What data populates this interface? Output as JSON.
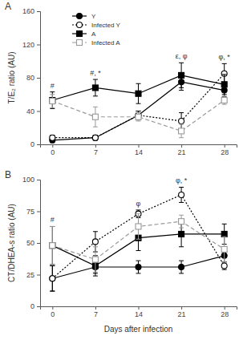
{
  "chart_data": [
    {
      "type": "line",
      "title": "A",
      "y_label": "T/E₂ ratio (AU)",
      "x": [
        0,
        7,
        14,
        21,
        28
      ],
      "xlim": [
        -2,
        30
      ],
      "xticks": [
        0,
        7,
        14,
        21,
        28
      ],
      "ylim": [
        0,
        160
      ],
      "yticks": [
        0,
        40,
        80,
        120,
        160
      ],
      "legend": "upper left",
      "series": [
        {
          "name": "Y",
          "color": "#000000",
          "marker": "circle",
          "line_style": "solid",
          "values": [
            5,
            8,
            35,
            75,
            65
          ],
          "errors": [
            3,
            3,
            5,
            10,
            8
          ]
        },
        {
          "name": "Infected Y",
          "color": "#000000",
          "marker": "circle-open",
          "line_style": "dotted",
          "values": [
            8,
            8,
            35,
            28,
            85
          ],
          "errors": [
            3,
            3,
            5,
            10,
            12
          ]
        },
        {
          "name": "A",
          "color": "#000000",
          "marker": "square",
          "line_style": "solid",
          "values": [
            53,
            68,
            61,
            83,
            72
          ],
          "errors": [
            10,
            10,
            12,
            15,
            12
          ]
        },
        {
          "name": "Infected A",
          "color": "#999999",
          "marker": "square-open",
          "line_style": "dashed",
          "values": [
            52,
            33,
            33,
            16,
            53
          ],
          "errors": [
            8,
            12,
            5,
            8,
            5
          ]
        }
      ],
      "annotations": [
        {
          "x": 0,
          "text": "#"
        },
        {
          "x": 7,
          "text": "#, *"
        },
        {
          "x": 21,
          "text": "ε, φ"
        },
        {
          "x": 28,
          "text": "φ, *"
        }
      ]
    },
    {
      "type": "line",
      "title": "B",
      "y_label": "CT/DHEA-s ratio (AU)",
      "x_label": "Days after infection",
      "x": [
        0,
        7,
        14,
        21,
        28
      ],
      "xlim": [
        -2,
        30
      ],
      "xticks": [
        0,
        7,
        14,
        21,
        28
      ],
      "ylim": [
        0,
        100
      ],
      "yticks": [
        0,
        25,
        50,
        75,
        100
      ],
      "series": [
        {
          "name": "Y",
          "color": "#000000",
          "marker": "circle",
          "line_style": "solid",
          "values": [
            22,
            31,
            31,
            31,
            40
          ],
          "errors": [
            10,
            5,
            5,
            5,
            5
          ]
        },
        {
          "name": "Infected Y",
          "color": "#000000",
          "marker": "circle-open",
          "line_style": "dotted",
          "values": [
            22,
            51,
            73,
            88,
            32
          ],
          "errors": [
            10,
            8,
            3,
            6,
            3
          ]
        },
        {
          "name": "A",
          "color": "#000000",
          "marker": "square",
          "line_style": "solid",
          "values": [
            48,
            32,
            54,
            57,
            57
          ],
          "errors": [
            15,
            8,
            10,
            10,
            8
          ]
        },
        {
          "name": "Infected A",
          "color": "#999999",
          "marker": "square-open",
          "line_style": "dashed",
          "values": [
            48,
            37,
            63,
            67,
            45
          ],
          "errors": [
            15,
            10,
            10,
            5,
            10
          ]
        }
      ],
      "annotations": [
        {
          "x": 0,
          "text": "#"
        },
        {
          "x": 14,
          "text": "φ"
        },
        {
          "x": 21,
          "text": "φ, *"
        }
      ]
    }
  ]
}
